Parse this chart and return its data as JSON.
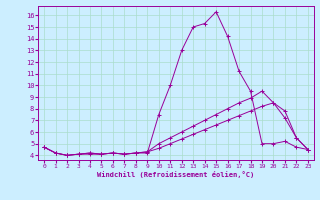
{
  "xlabel": "Windchill (Refroidissement éolien,°C)",
  "x": [
    0,
    1,
    2,
    3,
    4,
    5,
    6,
    7,
    8,
    9,
    10,
    11,
    12,
    13,
    14,
    15,
    16,
    17,
    18,
    19,
    20,
    21,
    22,
    23
  ],
  "line1": [
    4.7,
    4.2,
    4.0,
    4.1,
    4.1,
    4.1,
    4.2,
    4.1,
    4.2,
    4.2,
    7.5,
    10.0,
    13.0,
    15.0,
    15.3,
    16.3,
    14.2,
    11.2,
    9.5,
    5.0,
    5.0,
    5.2,
    4.7,
    4.5
  ],
  "line2": [
    4.7,
    4.2,
    4.0,
    4.1,
    4.2,
    4.1,
    4.2,
    4.1,
    4.2,
    4.3,
    5.0,
    5.5,
    6.0,
    6.5,
    7.0,
    7.5,
    8.0,
    8.5,
    8.9,
    9.5,
    8.5,
    7.8,
    5.5,
    4.5
  ],
  "line3": [
    4.7,
    4.2,
    4.0,
    4.1,
    4.2,
    4.1,
    4.2,
    4.1,
    4.2,
    4.3,
    4.6,
    5.0,
    5.4,
    5.8,
    6.2,
    6.6,
    7.0,
    7.4,
    7.8,
    8.2,
    8.5,
    7.2,
    5.5,
    4.5
  ],
  "line_color": "#990099",
  "bg_color": "#cceeff",
  "grid_color": "#aaddcc",
  "ylim_min": 3.6,
  "ylim_max": 16.8,
  "yticks": [
    4,
    5,
    6,
    7,
    8,
    9,
    10,
    11,
    12,
    13,
    14,
    15,
    16
  ],
  "xticks": [
    0,
    1,
    2,
    3,
    4,
    5,
    6,
    7,
    8,
    9,
    10,
    11,
    12,
    13,
    14,
    15,
    16,
    17,
    18,
    19,
    20,
    21,
    22,
    23
  ]
}
